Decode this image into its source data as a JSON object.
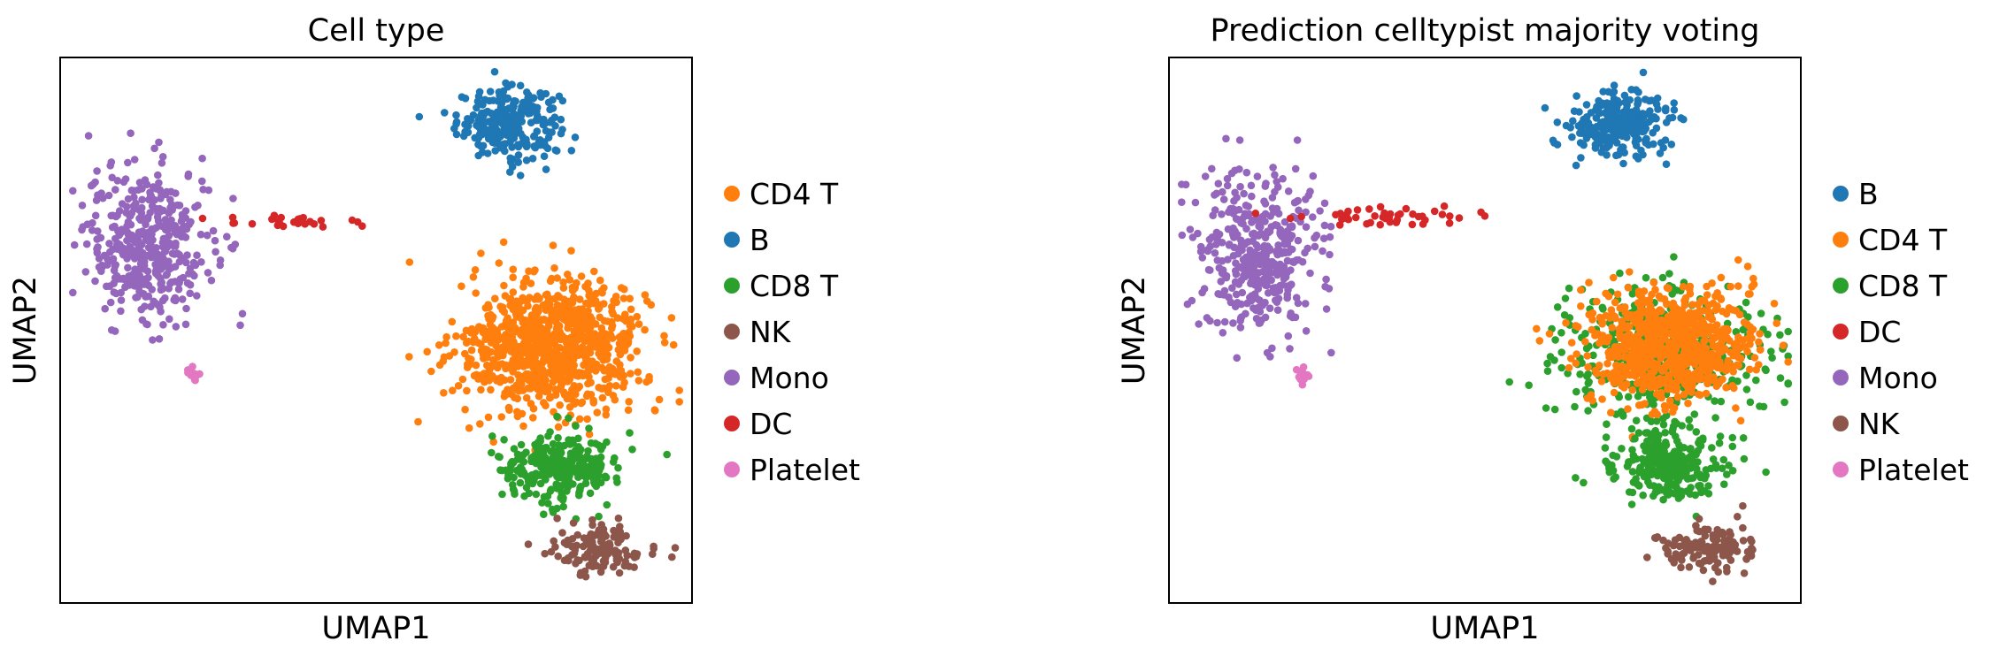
{
  "colors": {
    "B": "#1f77b4",
    "CD4 T": "#ff7f0e",
    "CD8 T": "#2ca02c",
    "DC": "#d62728",
    "Mono": "#9467bd",
    "NK": "#8c564b",
    "Platelet": "#e377c2"
  },
  "chart_data": [
    {
      "type": "scatter",
      "title": "Cell type",
      "xlabel": "UMAP1",
      "ylabel": "UMAP2",
      "xticks": false,
      "yticks": false,
      "legend_position": "right",
      "legend": [
        "CD4 T",
        "B",
        "CD8 T",
        "NK",
        "Mono",
        "DC",
        "Platelet"
      ],
      "clusters": [
        {
          "name": "B",
          "center": [
            0.71,
            0.88
          ],
          "spread": [
            0.09,
            0.07
          ],
          "n": 260
        },
        {
          "name": "Mono",
          "center": [
            0.14,
            0.66
          ],
          "spread": [
            0.11,
            0.16
          ],
          "n": 420
        },
        {
          "name": "DC",
          "center": [
            0.36,
            0.7
          ],
          "spread": [
            0.14,
            0.015
          ],
          "n": 26
        },
        {
          "name": "CD4 T",
          "center": [
            0.78,
            0.47
          ],
          "spread": [
            0.16,
            0.13
          ],
          "n": 900
        },
        {
          "name": "CD8 T",
          "center": [
            0.79,
            0.25
          ],
          "spread": [
            0.1,
            0.07
          ],
          "n": 300
        },
        {
          "name": "NK",
          "center": [
            0.85,
            0.1
          ],
          "spread": [
            0.08,
            0.05
          ],
          "n": 130
        },
        {
          "name": "Platelet",
          "center": [
            0.21,
            0.42
          ],
          "spread": [
            0.015,
            0.02
          ],
          "n": 12
        }
      ]
    },
    {
      "type": "scatter",
      "title": "Prediction celltypist majority voting",
      "xlabel": "UMAP1",
      "ylabel": "UMAP2",
      "xticks": false,
      "yticks": false,
      "legend_position": "right",
      "legend": [
        "B",
        "CD4 T",
        "CD8 T",
        "DC",
        "Mono",
        "NK",
        "Platelet"
      ],
      "clusters": [
        {
          "name": "B",
          "center": [
            0.71,
            0.88
          ],
          "spread": [
            0.09,
            0.07
          ],
          "n": 260
        },
        {
          "name": "Mono",
          "center": [
            0.14,
            0.64
          ],
          "spread": [
            0.11,
            0.16
          ],
          "n": 400
        },
        {
          "name": "DC",
          "center": [
            0.34,
            0.71
          ],
          "spread": [
            0.15,
            0.02
          ],
          "n": 45
        },
        {
          "name": "CD8 T",
          "center": [
            0.78,
            0.45
          ],
          "spread": [
            0.17,
            0.14
          ],
          "n": 480
        },
        {
          "name": "CD4 T",
          "center": [
            0.79,
            0.47
          ],
          "spread": [
            0.14,
            0.12
          ],
          "n": 780
        },
        {
          "name": "CD8 T",
          "center": [
            0.79,
            0.25
          ],
          "spread": [
            0.1,
            0.07
          ],
          "n": 260
        },
        {
          "name": "NK",
          "center": [
            0.85,
            0.1
          ],
          "spread": [
            0.08,
            0.05
          ],
          "n": 130
        },
        {
          "name": "Platelet",
          "center": [
            0.21,
            0.42
          ],
          "spread": [
            0.015,
            0.02
          ],
          "n": 12
        }
      ]
    }
  ]
}
